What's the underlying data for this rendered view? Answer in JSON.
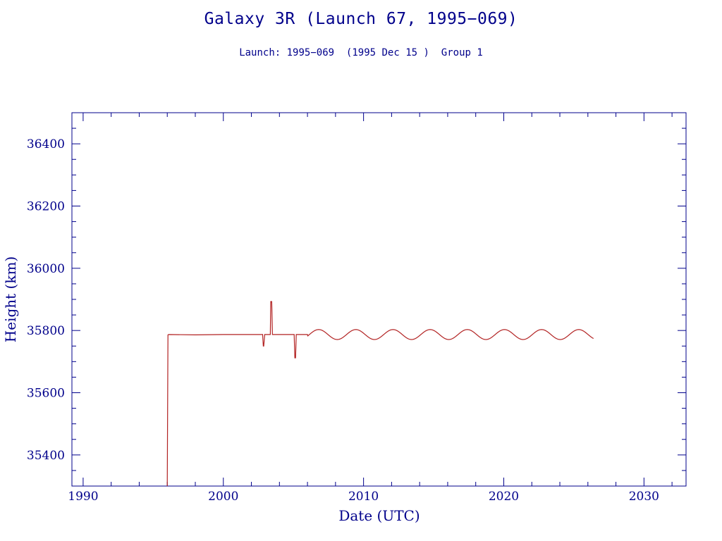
{
  "chart_data": {
    "type": "line",
    "title": "Galaxy 3R (Launch 67, 1995−069)",
    "subtitle": "Launch: 1995−069  (1995 Dec 15 )  Group 1",
    "xlabel": "Date (UTC)",
    "ylabel": "Height (km)",
    "xlim": [
      1989.2,
      2033
    ],
    "ylim": [
      35300,
      36500
    ],
    "x_ticks": [
      1990,
      2000,
      2010,
      2020,
      2030
    ],
    "y_ticks": [
      35400,
      35600,
      35800,
      36000,
      36200,
      36400
    ],
    "grid": false,
    "colors": {
      "axis": "#00008b",
      "series": "#b22222"
    },
    "series": [
      {
        "x": [
          1996.0,
          1996.05,
          1996.1,
          1998.0,
          2000.0,
          2002.8,
          2002.85,
          2002.88,
          2002.95,
          2003.0,
          2003.35,
          2003.38,
          2003.45,
          2003.5,
          2003.55,
          2005.05,
          2005.1,
          2005.15,
          2005.2,
          2005.25,
          2006.0
        ],
        "y": [
          35300,
          35786,
          35787,
          35786,
          35787,
          35787,
          35750,
          35750,
          35787,
          35787,
          35787,
          35893,
          35893,
          35787,
          35787,
          35787,
          35712,
          35712,
          35787,
          35787,
          35787
        ],
        "oscillation": {
          "x_start": 2006.0,
          "x_end": 2026.4,
          "center": 35787,
          "amplitude": 16,
          "period_years": 2.65,
          "first_peak": 2006.8
        }
      }
    ]
  }
}
